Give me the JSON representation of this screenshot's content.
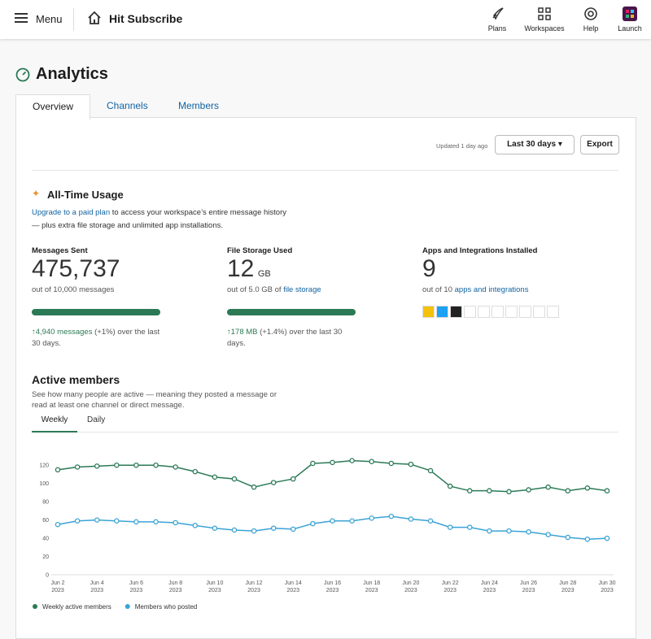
{
  "header": {
    "menu_label": "Menu",
    "workspace_name": "Hit Subscribe",
    "nav": [
      {
        "label": "Plans"
      },
      {
        "label": "Workspaces"
      },
      {
        "label": "Help"
      },
      {
        "label": "Launch"
      }
    ]
  },
  "page": {
    "title": "Analytics",
    "tabs": [
      "Overview",
      "Channels",
      "Members"
    ]
  },
  "toolbar": {
    "updated": "Updated 1 day ago",
    "range": "Last 30 days",
    "export": "Export"
  },
  "usage": {
    "title": "All-Time Usage",
    "intro_link": "Upgrade to a paid plan",
    "intro_text": "to access your workspace’s entire message history — plus extra file storage and unlimited app installations.",
    "stats": [
      {
        "label": "Messages Sent",
        "value": "475,737",
        "note": "out of 10,000 messages",
        "delta": "↑4,940 messages",
        "delta_pct": "(+1%)",
        "delta_rest": "over the last 30 days."
      },
      {
        "label": "File Storage Used",
        "value": "12",
        "unit": "GB",
        "note": "out of 5.0 GB of",
        "note_link": "file storage",
        "delta": "↑178 MB",
        "delta_pct": "(+1.4%)",
        "delta_rest": "over the last 30 days."
      },
      {
        "label": "Apps and Integrations Installed",
        "value": "9",
        "note": "out of 10",
        "note_link": "apps and integrations"
      }
    ]
  },
  "active": {
    "title": "Active members",
    "description": "See how many people are active — meaning they posted a message or read at least one channel or direct message.",
    "tabs": [
      "Weekly",
      "Daily"
    ]
  },
  "chart_data": {
    "type": "line",
    "categories": [
      "Jun 2",
      null,
      "Jun 4",
      null,
      "Jun 6",
      null,
      "Jun 8",
      null,
      "Jun 10",
      null,
      "Jun 12",
      null,
      "Jun 14",
      null,
      "Jun 16",
      null,
      "Jun 18",
      null,
      "Jun 20",
      null,
      "Jun 22",
      null,
      "Jun 24",
      null,
      "Jun 26",
      null,
      "Jun 28",
      null,
      "Jun 30"
    ],
    "category_year": "2023",
    "ylim": [
      0,
      130
    ],
    "yticks": [
      0,
      20,
      40,
      60,
      80,
      100,
      120
    ],
    "grid": false,
    "legend": "bottom-left",
    "series": [
      {
        "name": "Weekly active members",
        "color": "#2b7a55",
        "values": [
          115,
          118,
          119,
          120,
          120,
          120,
          118,
          113,
          107,
          105,
          96,
          101,
          105,
          122,
          123,
          125,
          124,
          122,
          121,
          114,
          97,
          92,
          92,
          91,
          93,
          96,
          92,
          95,
          92
        ]
      },
      {
        "name": "Members who posted",
        "color": "#3aa3d6",
        "values": [
          55,
          59,
          60,
          59,
          58,
          58,
          57,
          54,
          51,
          49,
          48,
          51,
          50,
          56,
          59,
          59,
          62,
          64,
          61,
          59,
          52,
          52,
          48,
          48,
          47,
          44,
          41,
          39,
          40
        ]
      }
    ]
  }
}
